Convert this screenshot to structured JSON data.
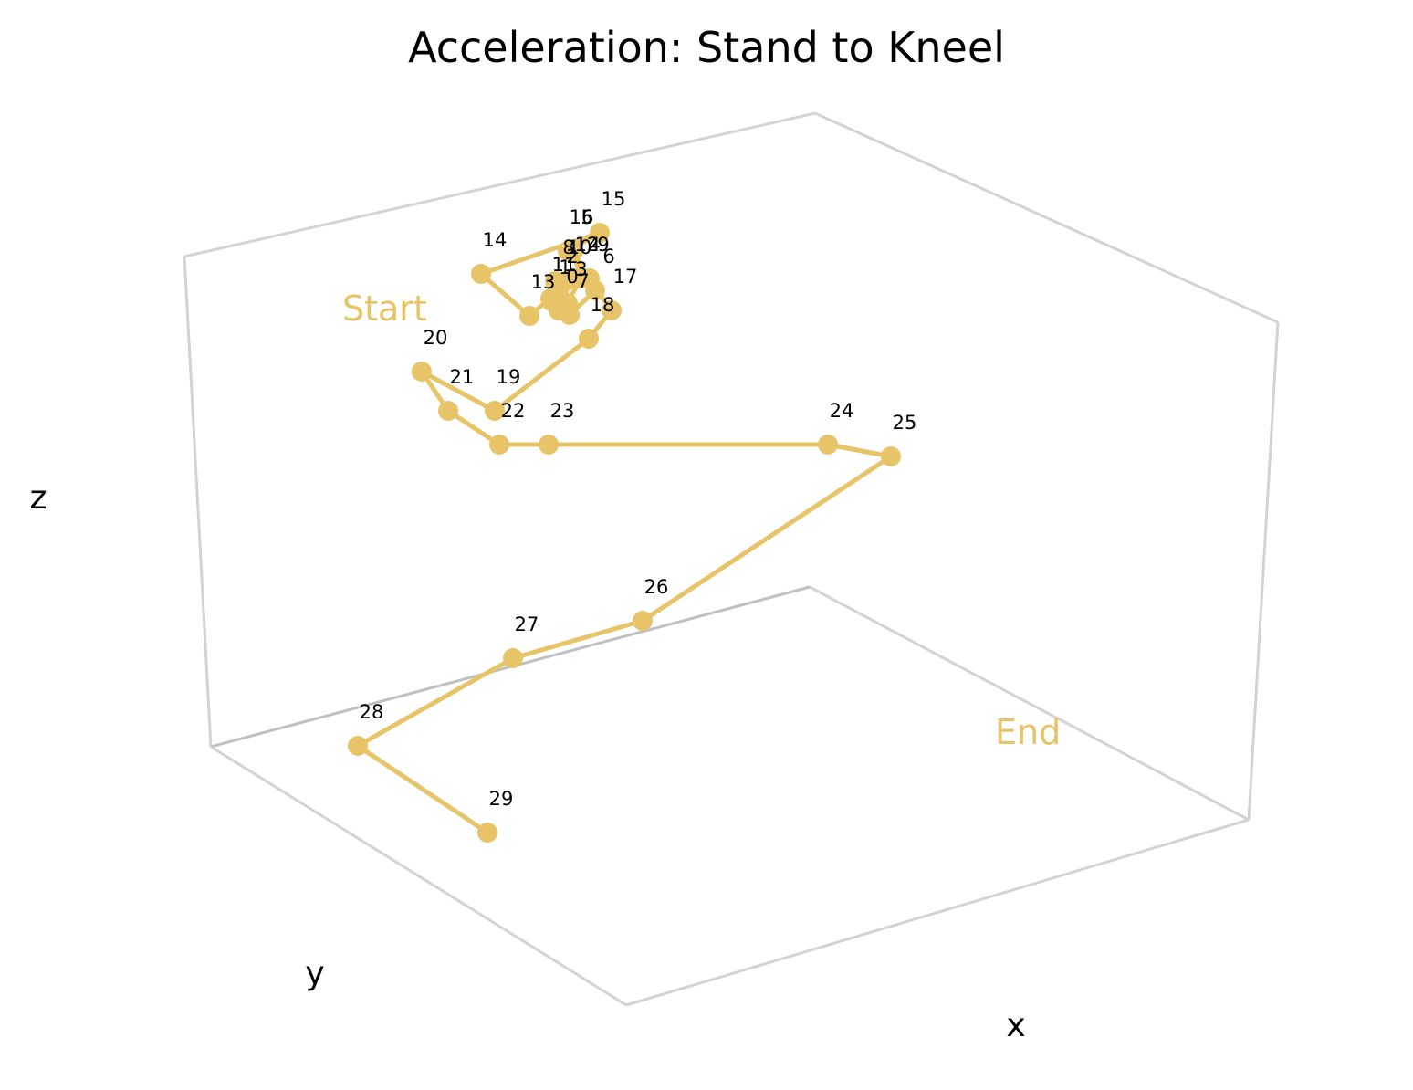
{
  "chart_data": {
    "type": "line3d",
    "title": "Acceleration: Stand to Kneel",
    "xlabel": "x",
    "ylabel": "y",
    "zlabel": "z",
    "grid": false,
    "color": "#e8c468",
    "annotations": [
      {
        "text": "Start",
        "anchor_point": 0
      },
      {
        "text": "End",
        "anchor_point": 29
      }
    ],
    "points": [
      {
        "label": "0",
        "sx": 612,
        "sy": 340
      },
      {
        "label": "1",
        "sx": 604,
        "sy": 330
      },
      {
        "label": "2",
        "sx": 612,
        "sy": 318
      },
      {
        "label": "3",
        "sx": 622,
        "sy": 332
      },
      {
        "label": "4",
        "sx": 636,
        "sy": 305
      },
      {
        "label": "5",
        "sx": 628,
        "sy": 275
      },
      {
        "label": "6",
        "sx": 652,
        "sy": 318
      },
      {
        "label": "7",
        "sx": 624,
        "sy": 345
      },
      {
        "label": "8",
        "sx": 608,
        "sy": 308
      },
      {
        "label": "9",
        "sx": 646,
        "sy": 305
      },
      {
        "label": "10",
        "sx": 620,
        "sy": 308
      },
      {
        "label": "11",
        "sx": 603,
        "sy": 327
      },
      {
        "label": "12",
        "sx": 628,
        "sy": 305
      },
      {
        "label": "13",
        "sx": 580,
        "sy": 346
      },
      {
        "label": "14",
        "sx": 527,
        "sy": 300
      },
      {
        "label": "15",
        "sx": 657,
        "sy": 255
      },
      {
        "label": "16",
        "sx": 622,
        "sy": 275
      },
      {
        "label": "17",
        "sx": 670,
        "sy": 340
      },
      {
        "label": "18",
        "sx": 645,
        "sy": 371
      },
      {
        "label": "19",
        "sx": 542,
        "sy": 450
      },
      {
        "label": "20",
        "sx": 462,
        "sy": 407
      },
      {
        "label": "21",
        "sx": 491,
        "sy": 450
      },
      {
        "label": "22",
        "sx": 547,
        "sy": 487
      },
      {
        "label": "23",
        "sx": 601,
        "sy": 487
      },
      {
        "label": "24",
        "sx": 907,
        "sy": 487
      },
      {
        "label": "25",
        "sx": 976,
        "sy": 500
      },
      {
        "label": "26",
        "sx": 704,
        "sy": 680
      },
      {
        "label": "27",
        "sx": 562,
        "sy": 721
      },
      {
        "label": "28",
        "sx": 392,
        "sy": 817
      },
      {
        "label": "29",
        "sx": 534,
        "sy": 912
      }
    ]
  }
}
